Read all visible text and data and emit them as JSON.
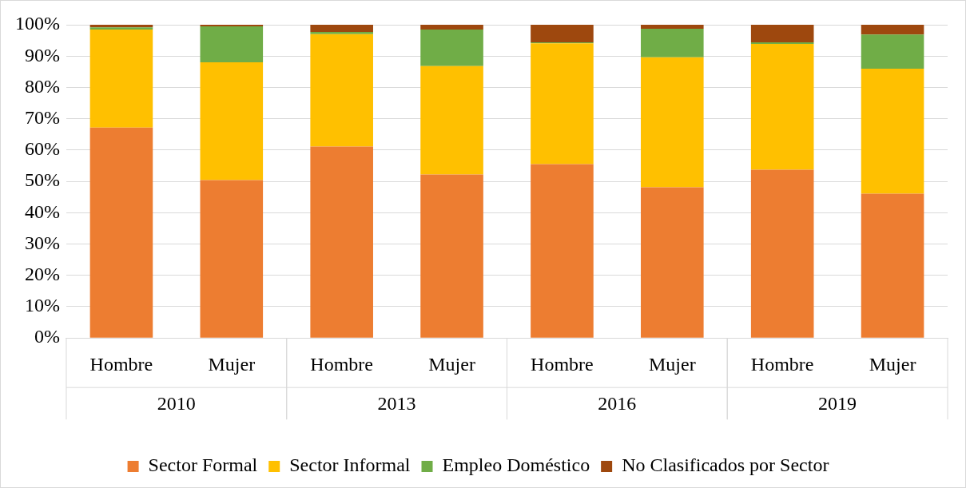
{
  "chart_data": {
    "type": "bar",
    "stacked": true,
    "categories": [
      "Hombre",
      "Mujer",
      "Hombre",
      "Mujer",
      "Hombre",
      "Mujer",
      "Hombre",
      "Mujer"
    ],
    "annotations": [
      "2010",
      "2013",
      "2016",
      "2019"
    ],
    "series": [
      {
        "name": "Sector Formal",
        "color": "#ed7d31",
        "values": [
          67.2,
          50.4,
          61.1,
          52.2,
          55.5,
          48.1,
          53.7,
          46.1
        ]
      },
      {
        "name": "Sector Informal",
        "color": "#ffc000",
        "values": [
          31.3,
          37.6,
          35.9,
          34.6,
          38.6,
          41.5,
          40.2,
          39.9
        ]
      },
      {
        "name": "Empleo Doméstico",
        "color": "#70ad47",
        "values": [
          0.7,
          11.5,
          0.7,
          11.7,
          0.3,
          9.1,
          0.5,
          10.9
        ]
      },
      {
        "name": "No Clasificados por Sector",
        "color": "#9e480e",
        "values": [
          0.8,
          0.5,
          2.3,
          1.5,
          5.6,
          1.3,
          5.6,
          3.1
        ]
      }
    ],
    "ylim": [
      0,
      100
    ],
    "yticks": [
      {
        "value": 0,
        "label": "0%"
      },
      {
        "value": 10,
        "label": "10%"
      },
      {
        "value": 20,
        "label": "20%"
      },
      {
        "value": 30,
        "label": "30%"
      },
      {
        "value": 40,
        "label": "40%"
      },
      {
        "value": 50,
        "label": "50%"
      },
      {
        "value": 60,
        "label": "60%"
      },
      {
        "value": 70,
        "label": "70%"
      },
      {
        "value": 80,
        "label": "80%"
      },
      {
        "value": 90,
        "label": "90%"
      },
      {
        "value": 100,
        "label": "100%"
      }
    ],
    "grid": "y",
    "legend": "bottom"
  }
}
